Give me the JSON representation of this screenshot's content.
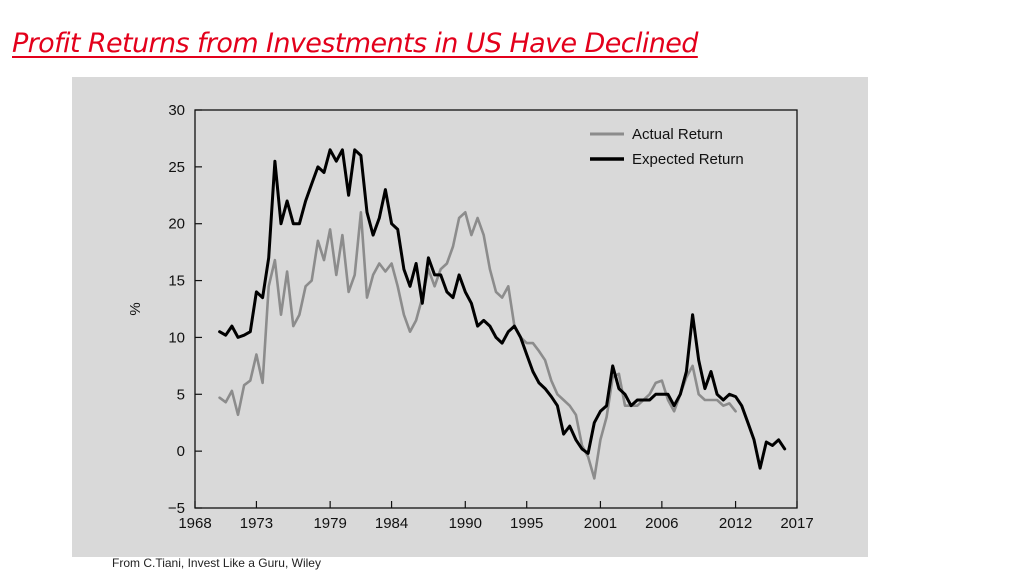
{
  "slide": {
    "title": "Profit Returns from Investments in US Have Declined",
    "source": "From C.Tiani, Invest Like a Guru, Wiley"
  },
  "colors": {
    "title": "#e3001b",
    "panel_background": "#d9d9d9",
    "plot_background": "#d9d9d9",
    "actual_return": "#8c8c8c",
    "expected_return": "#000000"
  },
  "chart_data": {
    "type": "line",
    "title": "",
    "xlabel": "",
    "ylabel": "%",
    "xlim": [
      1968,
      2017
    ],
    "ylim": [
      -5,
      30
    ],
    "x_ticks": [
      1968,
      1973,
      1979,
      1984,
      1990,
      1995,
      2001,
      2006,
      2012,
      2017
    ],
    "y_ticks": [
      -5,
      0,
      5,
      10,
      15,
      20,
      25,
      30
    ],
    "x_tick_labels": [
      "1968",
      "1973",
      "1979",
      "1984",
      "1990",
      "1995",
      "2001",
      "2006",
      "2012",
      "2017"
    ],
    "y_tick_labels": [
      "−5",
      "0",
      "5",
      "10",
      "15",
      "20",
      "25",
      "30"
    ],
    "grid": false,
    "legend_position": "top-right",
    "series": [
      {
        "name": "Actual Return",
        "color": "#8c8c8c",
        "x": [
          1970,
          1970.5,
          1971,
          1971.5,
          1972,
          1972.5,
          1973,
          1973.5,
          1974,
          1974.5,
          1975,
          1975.5,
          1976,
          1976.5,
          1977,
          1977.5,
          1978,
          1978.5,
          1979,
          1979.5,
          1980,
          1980.5,
          1981,
          1981.5,
          1982,
          1982.5,
          1983,
          1983.5,
          1984,
          1984.5,
          1985,
          1985.5,
          1986,
          1986.5,
          1987,
          1987.5,
          1988,
          1988.5,
          1989,
          1989.5,
          1990,
          1990.5,
          1991,
          1991.5,
          1992,
          1992.5,
          1993,
          1993.5,
          1994,
          1994.5,
          1995,
          1995.5,
          1996,
          1996.5,
          1997,
          1997.5,
          1998,
          1998.5,
          1999,
          1999.5,
          2000,
          2000.5,
          2001,
          2001.5,
          2002,
          2002.5,
          2003,
          2003.5,
          2004,
          2004.5,
          2005,
          2005.5,
          2006,
          2006.5,
          2007,
          2007.5,
          2008,
          2008.5,
          2009,
          2009.5,
          2010,
          2010.5,
          2011,
          2011.5,
          2012
        ],
        "values": [
          4.7,
          4.3,
          5.3,
          3.2,
          5.8,
          6.2,
          8.5,
          6.0,
          14.5,
          16.8,
          12.0,
          15.8,
          11.0,
          12.0,
          14.5,
          15.0,
          18.5,
          16.8,
          19.5,
          15.5,
          19.0,
          14.0,
          15.5,
          21.0,
          13.5,
          15.5,
          16.5,
          15.8,
          16.5,
          14.5,
          12.0,
          10.5,
          11.5,
          13.5,
          16.0,
          14.5,
          16.0,
          16.5,
          18.0,
          20.5,
          21.0,
          19.0,
          20.5,
          19.0,
          16.0,
          14.0,
          13.5,
          14.5,
          11.0,
          10.0,
          9.5,
          9.5,
          8.8,
          8.0,
          6.2,
          5.0,
          4.5,
          4.0,
          3.2,
          0.5,
          -0.5,
          -2.4,
          1.0,
          3.0,
          6.5,
          6.8,
          4.0,
          4.0,
          4.0,
          4.5,
          5.0,
          6.0,
          6.2,
          4.5,
          3.5,
          5.0,
          6.5,
          7.5,
          5.0,
          4.5,
          4.5,
          4.5,
          4.0,
          4.2,
          3.5
        ]
      },
      {
        "name": "Expected Return",
        "color": "#000000",
        "x": [
          1970,
          1970.5,
          1971,
          1971.5,
          1972,
          1972.5,
          1973,
          1973.5,
          1974,
          1974.5,
          1975,
          1975.5,
          1976,
          1976.5,
          1977,
          1977.5,
          1978,
          1978.5,
          1979,
          1979.5,
          1980,
          1980.5,
          1981,
          1981.5,
          1982,
          1982.5,
          1983,
          1983.5,
          1984,
          1984.5,
          1985,
          1985.5,
          1986,
          1986.5,
          1987,
          1987.5,
          1988,
          1988.5,
          1989,
          1989.5,
          1990,
          1990.5,
          1991,
          1991.5,
          1992,
          1992.5,
          1993,
          1993.5,
          1994,
          1994.5,
          1995,
          1995.5,
          1996,
          1996.5,
          1997,
          1997.5,
          1998,
          1998.5,
          1999,
          1999.5,
          2000,
          2000.5,
          2001,
          2001.5,
          2002,
          2002.5,
          2003,
          2003.5,
          2004,
          2004.5,
          2005,
          2005.5,
          2006,
          2006.5,
          2007,
          2007.5,
          2008,
          2008.5,
          2009,
          2009.5,
          2010,
          2010.5,
          2011,
          2011.5,
          2012,
          2012.5,
          2013,
          2013.5,
          2014,
          2014.5,
          2015,
          2015.5,
          2016
        ],
        "values": [
          10.5,
          10.2,
          11.0,
          10.0,
          10.2,
          10.5,
          14.0,
          13.5,
          17.0,
          25.5,
          20.0,
          22.0,
          20.0,
          20.0,
          22.0,
          23.5,
          25.0,
          24.5,
          26.5,
          25.5,
          26.5,
          22.5,
          26.5,
          26.0,
          21.0,
          19.0,
          20.5,
          23.0,
          20.0,
          19.5,
          16.0,
          14.5,
          16.5,
          13.0,
          17.0,
          15.5,
          15.5,
          14.0,
          13.5,
          15.5,
          14.0,
          13.0,
          11.0,
          11.5,
          11.0,
          10.0,
          9.5,
          10.5,
          11.0,
          10.0,
          8.5,
          7.0,
          6.0,
          5.5,
          4.8,
          4.0,
          1.5,
          2.2,
          1.0,
          0.2,
          -0.2,
          2.5,
          3.5,
          4.0,
          7.5,
          5.5,
          5.0,
          4.0,
          4.5,
          4.5,
          4.5,
          5.0,
          5.0,
          5.0,
          4.0,
          5.0,
          7.0,
          12.0,
          8.0,
          5.5,
          7.0,
          5.0,
          4.5,
          5.0,
          4.8,
          4.0,
          2.5,
          1.0,
          -1.5,
          0.8,
          0.5,
          1.0,
          0.2
        ]
      }
    ]
  }
}
